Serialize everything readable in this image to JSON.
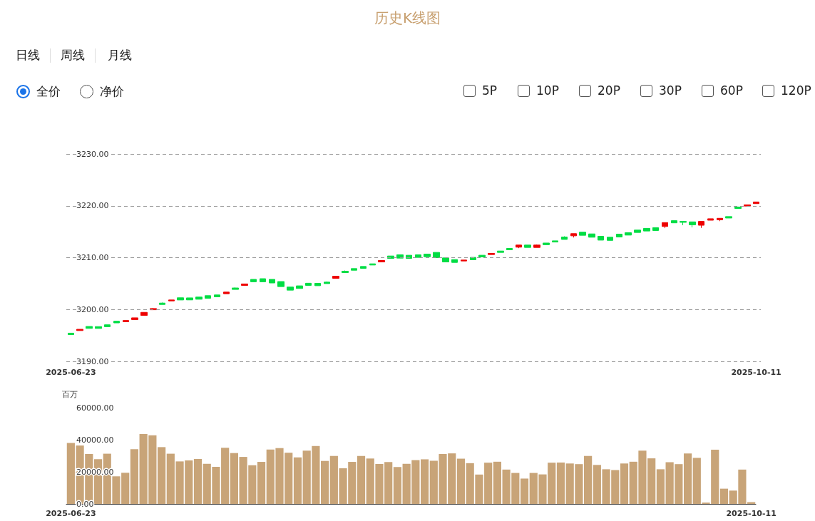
{
  "chart_data": [
    {
      "type": "candlestick",
      "title": "历史K线图",
      "annotations": [
        "日线",
        "周线",
        "月线",
        "全价",
        "净价",
        "5P",
        "10P",
        "20P",
        "30P",
        "60P",
        "120P"
      ],
      "categories": [
        "2025-06-23",
        null,
        null,
        null,
        null,
        null,
        null,
        null,
        null,
        null,
        null,
        null,
        null,
        null,
        null,
        null,
        null,
        null,
        null,
        null,
        null,
        null,
        null,
        null,
        null,
        null,
        null,
        null,
        null,
        null,
        null,
        null,
        null,
        null,
        null,
        null,
        null,
        null,
        null,
        null,
        null,
        null,
        null,
        null,
        null,
        null,
        null,
        null,
        null,
        null,
        null,
        null,
        null,
        null,
        null,
        null,
        null,
        null,
        null,
        null,
        null,
        null,
        null,
        null,
        null,
        null,
        null,
        null,
        null,
        null,
        null,
        null,
        null,
        null,
        null,
        "2025-10-11"
      ],
      "ohlc": [
        [
          3195.44,
          3195.5,
          3195.1,
          3195.16
        ],
        [
          3195.94,
          3196.18,
          3195.94,
          3196.18
        ],
        [
          3196.73,
          3196.73,
          3196.36,
          3196.36
        ],
        [
          3196.7,
          3196.7,
          3196.35,
          3196.35
        ],
        [
          3197.05,
          3197.05,
          3196.68,
          3196.68
        ],
        [
          3197.74,
          3197.74,
          3197.42,
          3197.42
        ],
        [
          3197.65,
          3197.88,
          3197.65,
          3197.88
        ],
        [
          3198.06,
          3198.39,
          3198.06,
          3198.39
        ],
        [
          3198.85,
          3199.45,
          3198.85,
          3199.45
        ],
        [
          3199.95,
          3200.28,
          3199.95,
          3200.18
        ],
        [
          3201.24,
          3201.34,
          3200.97,
          3200.97
        ],
        [
          3201.66,
          3201.84,
          3201.66,
          3201.84
        ],
        [
          3202.26,
          3202.26,
          3201.84,
          3201.84
        ],
        [
          3202.24,
          3202.24,
          3201.85,
          3201.85
        ],
        [
          3202.4,
          3202.4,
          3201.98,
          3201.98
        ],
        [
          3202.67,
          3202.67,
          3202.17,
          3202.17
        ],
        [
          3202.81,
          3202.81,
          3202.44,
          3202.44
        ],
        [
          3203.04,
          3203.36,
          3203.04,
          3203.36
        ],
        [
          3204.15,
          3204.24,
          3203.87,
          3203.87
        ],
        [
          3204.65,
          3204.93,
          3204.65,
          3204.93
        ],
        [
          3205.81,
          3205.81,
          3205.35,
          3205.35
        ],
        [
          3205.94,
          3205.94,
          3205.35,
          3205.35
        ],
        [
          3205.81,
          3205.81,
          3205.12,
          3205.12
        ],
        [
          3205.39,
          3205.39,
          3204.42,
          3204.42
        ],
        [
          3204.33,
          3204.33,
          3203.73,
          3203.73
        ],
        [
          3204.56,
          3204.56,
          3204.06,
          3204.06
        ],
        [
          3205.07,
          3205.07,
          3204.65,
          3204.65
        ],
        [
          3205.05,
          3205.05,
          3204.59,
          3204.59
        ],
        [
          3205.28,
          3205.41,
          3205.0,
          3205.0
        ],
        [
          3206.01,
          3206.42,
          3206.01,
          3206.42
        ],
        [
          3207.39,
          3207.52,
          3207.11,
          3207.11
        ],
        [
          3207.89,
          3207.89,
          3207.57,
          3207.57
        ],
        [
          3208.3,
          3208.3,
          3207.94,
          3207.94
        ],
        [
          3208.81,
          3208.81,
          3208.58,
          3208.58
        ],
        [
          3209.17,
          3209.45,
          3209.17,
          3209.45
        ],
        [
          3210.32,
          3210.32,
          3209.86,
          3209.86
        ],
        [
          3210.55,
          3210.55,
          3209.91,
          3209.91
        ],
        [
          3210.46,
          3210.46,
          3209.86,
          3209.86
        ],
        [
          3210.55,
          3210.55,
          3210.05,
          3210.05
        ],
        [
          3210.69,
          3210.69,
          3210.18,
          3210.18
        ],
        [
          3211.01,
          3211.01,
          3210.0,
          3210.0
        ],
        [
          3209.95,
          3209.95,
          3209.17,
          3209.17
        ],
        [
          3209.63,
          3209.63,
          3209.08,
          3209.08
        ],
        [
          3209.36,
          3209.54,
          3209.36,
          3209.54
        ],
        [
          3210.05,
          3210.05,
          3209.59,
          3209.59
        ],
        [
          3210.46,
          3210.46,
          3210.14,
          3210.14
        ],
        [
          3210.6,
          3210.83,
          3210.6,
          3210.83
        ],
        [
          3211.28,
          3211.28,
          3211.01,
          3211.01
        ],
        [
          3211.79,
          3211.79,
          3211.51,
          3211.51
        ],
        [
          3212.02,
          3212.43,
          3211.83,
          3212.43
        ],
        [
          3212.43,
          3212.43,
          3211.97,
          3211.97
        ],
        [
          3211.97,
          3212.52,
          3211.97,
          3212.43
        ],
        [
          3212.82,
          3212.82,
          3212.5,
          3212.5
        ],
        [
          3213.24,
          3213.24,
          3213.01,
          3213.01
        ],
        [
          3213.98,
          3214.12,
          3213.52,
          3213.52
        ],
        [
          3214.21,
          3214.63,
          3213.89,
          3214.63
        ],
        [
          3214.91,
          3214.91,
          3214.31,
          3214.31
        ],
        [
          3214.58,
          3214.58,
          3213.94,
          3213.94
        ],
        [
          3214.12,
          3214.12,
          3213.38,
          3213.38
        ],
        [
          3213.94,
          3213.94,
          3213.33,
          3213.33
        ],
        [
          3214.54,
          3214.54,
          3213.98,
          3213.98
        ],
        [
          3214.81,
          3214.81,
          3214.35,
          3214.35
        ],
        [
          3215.32,
          3215.32,
          3214.86,
          3214.86
        ],
        [
          3215.65,
          3215.65,
          3215.14,
          3215.14
        ],
        [
          3215.79,
          3215.79,
          3215.23,
          3215.23
        ],
        [
          3216.02,
          3216.76,
          3215.69,
          3216.76
        ],
        [
          3217.13,
          3217.13,
          3216.71,
          3216.71
        ],
        [
          3216.99,
          3216.99,
          3216.25,
          3216.81
        ],
        [
          3216.9,
          3216.9,
          3215.83,
          3216.34
        ],
        [
          3216.25,
          3216.99,
          3215.74,
          3216.99
        ],
        [
          3217.22,
          3217.5,
          3217.22,
          3217.5
        ],
        [
          3217.31,
          3217.59,
          3217.04,
          3217.59
        ],
        [
          3217.92,
          3217.92,
          3217.64,
          3217.64
        ],
        [
          3219.77,
          3219.77,
          3219.49,
          3219.49
        ],
        [
          3219.95,
          3220.19,
          3219.95,
          3220.19
        ],
        [
          3220.42,
          3220.74,
          3220.42,
          3220.74
        ]
      ],
      "colors": [
        "#00dd44",
        "#ee0000",
        "#00dd44",
        "#00dd44",
        "#00dd44",
        "#00dd44",
        "#ee0000",
        "#ee0000",
        "#ee0000",
        "#ee0000",
        "#00dd44",
        "#ee0000",
        "#00dd44",
        "#00dd44",
        "#00dd44",
        "#00dd44",
        "#00dd44",
        "#ee0000",
        "#00dd44",
        "#ee0000",
        "#00dd44",
        "#00dd44",
        "#00dd44",
        "#00dd44",
        "#00dd44",
        "#00dd44",
        "#00dd44",
        "#00dd44",
        "#00dd44",
        "#ee0000",
        "#00dd44",
        "#00dd44",
        "#00dd44",
        "#00dd44",
        "#ee0000",
        "#00dd44",
        "#00dd44",
        "#00dd44",
        "#00dd44",
        "#00dd44",
        "#00dd44",
        "#00dd44",
        "#00dd44",
        "#ee0000",
        "#00dd44",
        "#00dd44",
        "#ee0000",
        "#00dd44",
        "#00dd44",
        "#ee0000",
        "#00dd44",
        "#ee0000",
        "#00dd44",
        "#00dd44",
        "#00dd44",
        "#ee0000",
        "#00dd44",
        "#00dd44",
        "#00dd44",
        "#00dd44",
        "#00dd44",
        "#00dd44",
        "#00dd44",
        "#00dd44",
        "#00dd44",
        "#ee0000",
        "#00dd44",
        "#00dd44",
        "#00dd44",
        "#ee0000",
        "#ee0000",
        "#ee0000",
        "#00dd44",
        "#00dd44",
        "#ee0000",
        "#ee0000"
      ],
      "ylim": [
        3190,
        3230
      ],
      "yticks": [
        {
          "value": 3190,
          "label": "3190.00"
        },
        {
          "value": 3200,
          "label": "3200.00"
        },
        {
          "value": 3210,
          "label": "3210.00"
        },
        {
          "value": 3220,
          "label": "3220.00"
        },
        {
          "value": 3230,
          "label": "3230.00"
        }
      ],
      "grid": "y"
    },
    {
      "type": "bar",
      "ylabel": "百万",
      "categories": [
        "2025-06-23",
        null,
        null,
        null,
        null,
        null,
        null,
        null,
        null,
        null,
        null,
        null,
        null,
        null,
        null,
        null,
        null,
        null,
        null,
        null,
        null,
        null,
        null,
        null,
        null,
        null,
        null,
        null,
        null,
        null,
        null,
        null,
        null,
        null,
        null,
        null,
        null,
        null,
        null,
        null,
        null,
        null,
        null,
        null,
        null,
        null,
        null,
        null,
        null,
        null,
        null,
        null,
        null,
        null,
        null,
        null,
        null,
        null,
        null,
        null,
        null,
        null,
        null,
        null,
        null,
        null,
        null,
        null,
        null,
        null,
        null,
        null,
        null,
        null,
        null,
        "2025-10-11"
      ],
      "values": [
        38000,
        36400,
        31100,
        27900,
        31300,
        17200,
        19400,
        34100,
        43600,
        42800,
        35400,
        31300,
        26500,
        27100,
        28000,
        25000,
        23100,
        35000,
        31700,
        29300,
        24100,
        26200,
        33900,
        34800,
        31900,
        29000,
        33200,
        36100,
        26800,
        29900,
        22200,
        26200,
        29900,
        28300,
        24900,
        26100,
        23000,
        25000,
        27300,
        27800,
        26900,
        31100,
        31500,
        28200,
        25400,
        18300,
        25700,
        26300,
        21400,
        19300,
        15800,
        19300,
        18400,
        25700,
        25800,
        25200,
        24800,
        29900,
        24300,
        21600,
        21100,
        25200,
        26300,
        33200,
        28400,
        21600,
        26000,
        24800,
        31500,
        28700,
        800,
        33800,
        9500,
        8300,
        21400,
        1100
      ],
      "color": "#c8a478",
      "ylim": [
        0,
        60000
      ],
      "yticks": [
        {
          "value": 0,
          "label": "0.00"
        },
        {
          "value": 20000,
          "label": "20000.00"
        },
        {
          "value": 40000,
          "label": "40000.00"
        },
        {
          "value": 60000,
          "label": "60000.00"
        }
      ],
      "grid": false
    }
  ]
}
